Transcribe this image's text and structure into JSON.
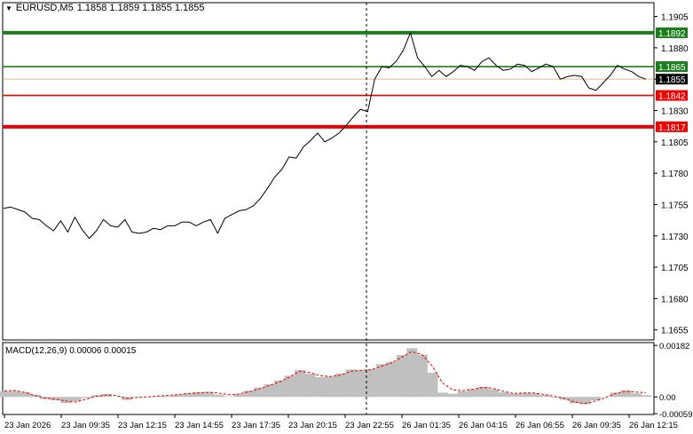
{
  "window": {
    "symbol": "EURUSD,M5",
    "ohlc": "1.1858 1.1859 1.1855 1.1855"
  },
  "macd_panel": {
    "label": "MACD(12,26,9) 0.00006 0.00015",
    "axis_labels": [
      "0.00182",
      "0.00",
      "-0.00059"
    ]
  },
  "colors": {
    "resistance": "#1a7f1a",
    "support": "#ee0000",
    "price_line": "#000000",
    "macd_histogram": "#c0c0c0",
    "macd_signal": "#ee0000",
    "current_price_box": "#000000",
    "separator": "#000000"
  },
  "chart_data": [
    {
      "type": "line",
      "series": [
        {
          "values": [
            1.1752,
            1.1753,
            1.1751,
            1.1749,
            1.1744,
            1.1743,
            1.1738,
            1.1734,
            1.1742,
            1.1733,
            1.1745,
            1.1735,
            1.1728,
            1.1734,
            1.1743,
            1.1738,
            1.1737,
            1.1743,
            1.1733,
            1.1732,
            1.1733,
            1.1736,
            1.1735,
            1.1738,
            1.1738,
            1.1741,
            1.1741,
            1.1738,
            1.1741,
            1.1743,
            1.1732,
            1.1744,
            1.1747,
            1.175,
            1.1751,
            1.1754,
            1.176,
            1.1768,
            1.1777,
            1.1783,
            1.1793,
            1.1792,
            1.1801,
            1.1806,
            1.1812,
            1.1805,
            1.1808,
            1.1812,
            1.1818,
            1.1825,
            1.1831,
            1.1829,
            1.1855,
            1.1865,
            1.1864,
            1.1869,
            1.1878,
            1.1892,
            1.1872,
            1.1865,
            1.1857,
            1.1862,
            1.1857,
            1.1861,
            1.1866,
            1.1865,
            1.1862,
            1.1869,
            1.1872,
            1.1866,
            1.1862,
            1.1863,
            1.1867,
            1.1866,
            1.1861,
            1.1864,
            1.1867,
            1.1865,
            1.1855,
            1.1857,
            1.1858,
            1.1857,
            1.1848,
            1.1846,
            1.1852,
            1.1858,
            1.1866,
            1.1863,
            1.1861,
            1.1857,
            1.1855
          ]
        }
      ],
      "x_tick_labels": [
        "23 Jan 2026",
        "23 Jan 09:35",
        "23 Jan 12:15",
        "23 Jan 14:55",
        "23 Jan 17:35",
        "23 Jan 20:15",
        "23 Jan 22:55",
        "26 Jan 01:35",
        "26 Jan 04:15",
        "26 Jan 06:55",
        "26 Jan 09:35",
        "26 Jan 12:15"
      ],
      "y_tick_labels": [
        "1.1905",
        "1.1880",
        "1.1855",
        "1.1830",
        "1.1805",
        "1.1780",
        "1.1755",
        "1.1730",
        "1.1705",
        "1.1680",
        "1.1655"
      ],
      "ylim": [
        1.1647,
        1.1916
      ],
      "horizontal_levels": [
        {
          "label": "1.1892",
          "value": 1.1892,
          "kind": "resistance",
          "weight": "thick"
        },
        {
          "label": "1.1865",
          "value": 1.1865,
          "kind": "resistance",
          "weight": "thin"
        },
        {
          "label": "1.1855",
          "value": 1.1855,
          "kind": "current",
          "weight": "thin"
        },
        {
          "label": "1.1842",
          "value": 1.1842,
          "kind": "support",
          "weight": "thin"
        },
        {
          "label": "1.1817",
          "value": 1.1817,
          "kind": "support",
          "weight": "thick"
        }
      ],
      "session_break": "23 Jan 22:55",
      "grid": false
    },
    {
      "type": "bar",
      "series": [
        {
          "values": [
            0.0002,
            0.00021,
            0.00017,
            8e-05,
            -8e-05,
            -0.00012,
            -0.00022,
            -0.00015,
            -4e-05,
            6e-05,
            0.0001,
            1e-05,
            -0.00011,
            -2e-05,
            0.0,
            2e-05,
            3e-05,
            7e-05,
            0.00012,
            0.00017,
            0.00018,
            8e-05,
            2e-05,
            0.0001,
            0.00022,
            0.00033,
            0.00045,
            0.00058,
            0.00075,
            0.00095,
            0.00082,
            0.0007,
            0.00072,
            0.00083,
            0.00097,
            0.00094,
            0.00098,
            0.00116,
            0.00124,
            0.00148,
            0.00172,
            0.00149,
            0.00085,
            0.00015,
            0.00011,
            0.0002,
            0.00028,
            0.00036,
            0.00027,
            0.00016,
            0.00011,
            0.00014,
            0.00013,
            7e-05,
            -2e-05,
            -0.0001,
            -0.00023,
            -0.00026,
            -0.00012,
            1e-05,
            0.00015,
            0.00024,
            0.00013,
            6e-05
          ]
        },
        {
          "values": [
            0.00021,
            0.00023,
            0.00016,
            5e-05,
            -4e-05,
            -8e-05,
            -0.00014,
            -0.00018,
            -8e-05,
            2e-05,
            7e-05,
            5e-05,
            -5e-05,
            -2e-05,
            0.0,
            3e-05,
            5e-05,
            8e-05,
            0.00012,
            0.00014,
            0.00016,
            0.00014,
            8e-05,
            0.0001,
            0.00018,
            0.00028,
            0.0004,
            0.00053,
            0.0007,
            0.0009,
            0.00086,
            0.00075,
            0.00072,
            0.00077,
            0.0009,
            0.00094,
            0.00096,
            0.00108,
            0.0012,
            0.0014,
            0.0016,
            0.0015,
            0.0011,
            0.0005,
            0.00025,
            0.00022,
            0.00027,
            0.00034,
            0.0003,
            0.0002,
            0.00012,
            0.00014,
            0.00014,
            9e-05,
            2e-05,
            -6e-05,
            -0.00018,
            -0.00023,
            -0.00015,
            -3e-05,
            0.00012,
            0.0002,
            0.00017,
            0.00015
          ]
        }
      ],
      "ylim": [
        -0.00062,
        0.00192
      ]
    }
  ]
}
